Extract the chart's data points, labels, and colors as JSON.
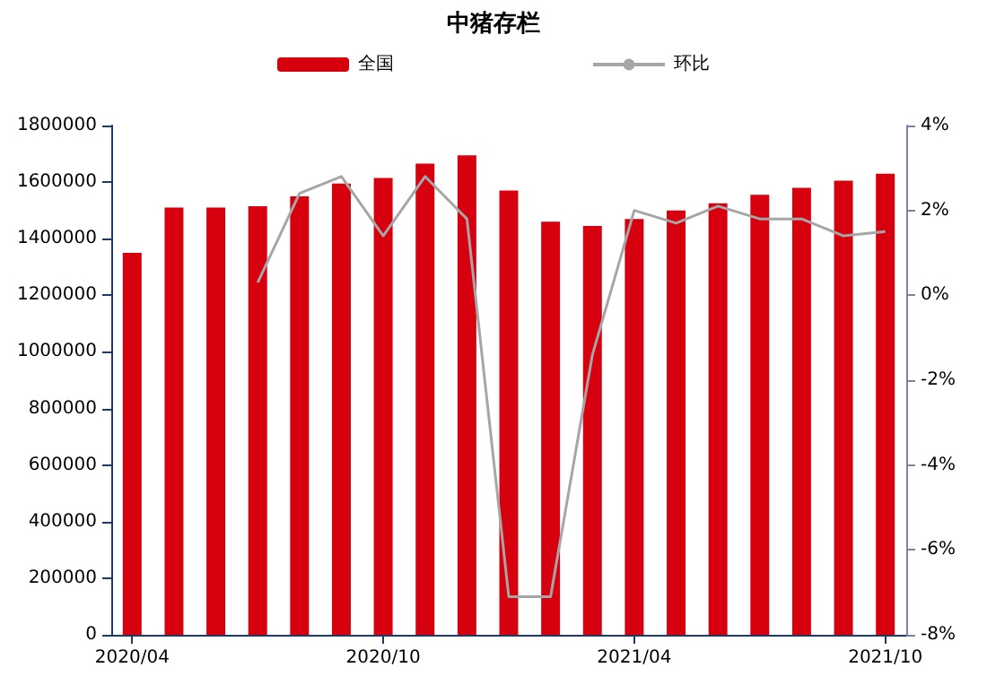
{
  "chart_data": {
    "type": "bar",
    "title": "中猪存栏",
    "categories": [
      "2020/04",
      null,
      null,
      null,
      null,
      null,
      "2020/10",
      null,
      null,
      null,
      null,
      null,
      "2021/04",
      null,
      null,
      null,
      null,
      null,
      "2021/10"
    ],
    "series": [
      {
        "name": "全国",
        "color": "#d7000f",
        "values": [
          1350000,
          1510000,
          1510000,
          1515000,
          1550000,
          1595000,
          1615000,
          1665000,
          1695000,
          1570000,
          1460000,
          1445000,
          1470000,
          1500000,
          1525000,
          1555000,
          1580000,
          1605000,
          1630000
        ]
      },
      {
        "name": "环比",
        "type": "line",
        "axis": "y2",
        "color": "#a6a6a6",
        "values": [
          null,
          null,
          null,
          0.3,
          2.4,
          2.8,
          1.4,
          2.8,
          1.8,
          -7.1,
          -7.1,
          -1.4,
          2.0,
          1.7,
          2.1,
          1.8,
          1.8,
          1.4,
          1.5
        ]
      }
    ],
    "ylim": [
      0,
      1800000
    ],
    "yticks": [
      0,
      200000,
      400000,
      600000,
      800000,
      1000000,
      1200000,
      1400000,
      1600000,
      1800000
    ],
    "y2lim": [
      -8,
      4
    ],
    "y2ticks": [
      {
        "value": -8,
        "label": "-8%"
      },
      {
        "value": -6,
        "label": "-6%"
      },
      {
        "value": -4,
        "label": "-4%"
      },
      {
        "value": -2,
        "label": "-2%"
      },
      {
        "value": 0,
        "label": "0%"
      },
      {
        "value": 2,
        "label": "2%"
      },
      {
        "value": 4,
        "label": "4%"
      }
    ],
    "grid": false,
    "legend": "top",
    "marker": "none",
    "line_style": "solid"
  }
}
